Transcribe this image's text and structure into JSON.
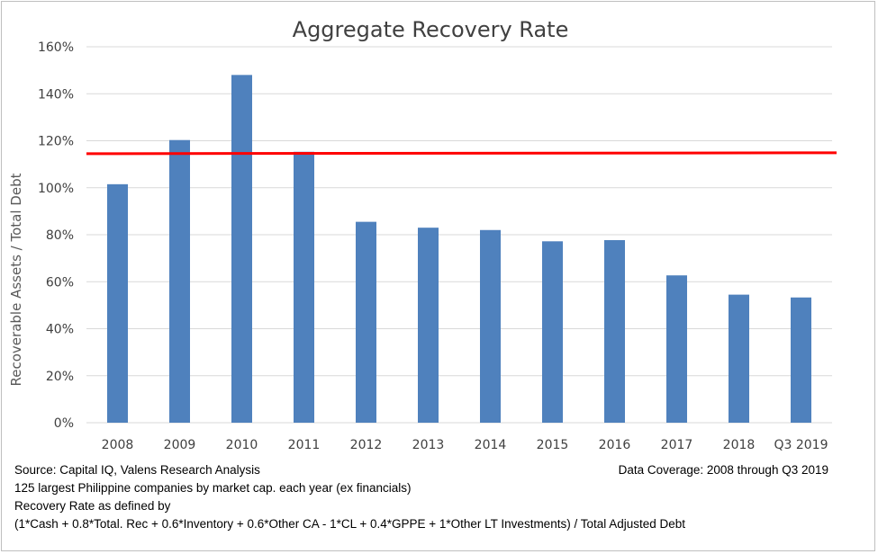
{
  "chart_data": {
    "type": "bar",
    "title": "Aggregate Recovery Rate",
    "xlabel": "",
    "ylabel": "Recoverable Assets / Total Debt",
    "categories": [
      "2008",
      "2009",
      "2010",
      "2011",
      "2012",
      "2013",
      "2014",
      "2015",
      "2016",
      "2017",
      "2018",
      "Q3 2019"
    ],
    "values": [
      101.5,
      120.3,
      148.0,
      115.3,
      85.5,
      83.0,
      82.0,
      77.2,
      77.7,
      62.7,
      54.5,
      53.3
    ],
    "ylim": [
      0,
      160
    ],
    "yticks": [
      0,
      20,
      40,
      60,
      80,
      100,
      120,
      140,
      160
    ],
    "ytick_labels": [
      "0%",
      "20%",
      "40%",
      "60%",
      "80%",
      "100%",
      "120%",
      "140%",
      "160%"
    ],
    "reference_line": 114.5,
    "grid": true,
    "colors": {
      "bar": "#4f81bd",
      "reference_line": "#ff0000",
      "grid": "#d9d9d9"
    }
  },
  "notes": {
    "source": "Source: Capital IQ, Valens Research Analysis",
    "coverage": "Data Coverage: 2008 through Q3 2019",
    "universe": "125 largest Philippine companies by market cap. each year (ex financials)",
    "definition_intro": "Recovery Rate as defined by",
    "formula": "(1*Cash + 0.8*Total. Rec + 0.6*Inventory + 0.6*Other CA - 1*CL + 0.4*GPPE + 1*Other LT Investments) / Total Adjusted Debt"
  }
}
